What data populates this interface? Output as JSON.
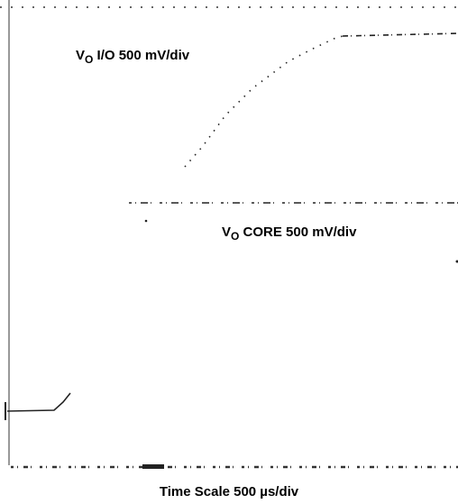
{
  "traces": [
    {
      "label": {
        "symbol": "V",
        "subscript": "O",
        "text": " I/O 500 mV/div"
      }
    },
    {
      "label": {
        "symbol": "V",
        "subscript": "O",
        "text": " CORE 500 mV/div"
      }
    }
  ],
  "caption": "Time Scale 500 µs/div"
}
